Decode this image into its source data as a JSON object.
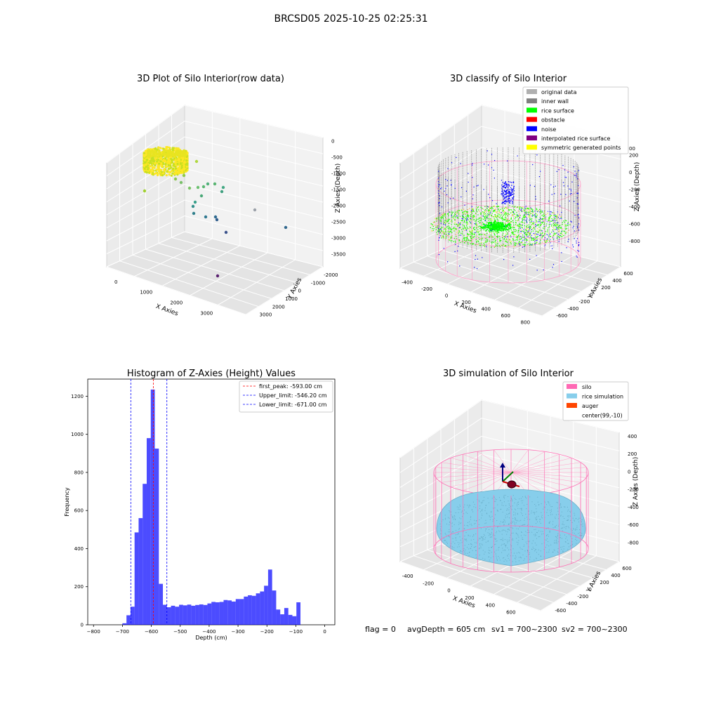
{
  "suptitle": "BRCSD05 2025-10-25 02:25:31",
  "footer": {
    "flag": "flag = 0",
    "avg_depth": "avgDepth = 605 cm",
    "sv1": "sv1 = 700~2300",
    "sv2": "sv2 = 700~2300"
  },
  "chart_data": [
    {
      "type": "scatter",
      "title": "3D Plot of Silo Interior(row data)",
      "xlabel": "X Axies",
      "ylabel": "Y Axies",
      "zlabel": "Z Axies (Depth)",
      "x_ticks": [
        "0",
        "1000",
        "2000",
        "3000"
      ],
      "y_ticks": [
        "-2000",
        "-1000",
        "0",
        "1000",
        "2000",
        "3000"
      ],
      "z_ticks": [
        "0",
        "-500",
        "-1000",
        "-1500",
        "-2000",
        "-2500",
        "-3000",
        "-3500"
      ],
      "colormap": [
        "#fde725",
        "#35b779",
        "#31688e",
        "#440154"
      ]
    },
    {
      "type": "scatter",
      "title": "3D classify of Silo Interior",
      "xlabel": "X Axies",
      "ylabel": "Y Axies",
      "zlabel": "Z Axies (Depth)",
      "x_ticks": [
        "-400",
        "-200",
        "0",
        "200",
        "400",
        "600",
        "800"
      ],
      "y_ticks": [
        "-600",
        "-400",
        "-200",
        "0",
        "200",
        "400",
        "600"
      ],
      "z_ticks": [
        "200",
        "0",
        "-200",
        "-400",
        "-600",
        "-800"
      ],
      "z_tick_partial": "00",
      "legend_position": "top-right",
      "legend": [
        {
          "label": "original data",
          "color": "#b0b0b0"
        },
        {
          "label": "inner wall",
          "color": "#808080"
        },
        {
          "label": "rice surface",
          "color": "#00ff00"
        },
        {
          "label": "obstacle",
          "color": "#ff0000"
        },
        {
          "label": "noise",
          "color": "#0000ff"
        },
        {
          "label": "interpolated rice surface",
          "color": "#800080"
        },
        {
          "label": "symmetric generated points",
          "color": "#ffff00"
        }
      ]
    },
    {
      "type": "bar",
      "title": "Histogram of Z-Axies (Height) Values",
      "xlabel": "Depth (cm)",
      "ylabel": "Frequency",
      "xlim": [
        -820,
        35
      ],
      "ylim": [
        0,
        1290
      ],
      "x_ticks": [
        -800,
        -700,
        -600,
        -500,
        -400,
        -300,
        -200,
        -100,
        0
      ],
      "y_ticks": [
        0,
        200,
        400,
        600,
        800,
        1000,
        1200
      ],
      "bin_width": 14,
      "bins_start": [
        -700,
        -686,
        -672,
        -658,
        -644,
        -630,
        -616,
        -602,
        -588,
        -574,
        -560,
        -546,
        -532,
        -518,
        -504,
        -490,
        -476,
        -462,
        -448,
        -434,
        -420,
        -406,
        -392,
        -378,
        -364,
        -350,
        -336,
        -322,
        -308,
        -294,
        -280,
        -266,
        -252,
        -238,
        -224,
        -210,
        -196,
        -182,
        -168,
        -154,
        -140,
        -126,
        -112,
        -98,
        -84,
        -70,
        -56,
        -42,
        -28,
        -14
      ],
      "values": [
        8,
        50,
        95,
        485,
        560,
        740,
        980,
        1235,
        925,
        215,
        105,
        92,
        100,
        95,
        105,
        102,
        106,
        100,
        104,
        107,
        104,
        112,
        120,
        118,
        120,
        130,
        128,
        122,
        135,
        135,
        148,
        155,
        152,
        165,
        175,
        205,
        290,
        180,
        80,
        55,
        88,
        52,
        45,
        118,
        0,
        0,
        0,
        0,
        0,
        0
      ],
      "bar_color": "#0000ff",
      "lines": [
        {
          "label": "first_peak: -593.00 cm",
          "x": -593,
          "color": "#ff0000"
        },
        {
          "label": "Upper_limit: -546.20 cm",
          "x": -546.2,
          "color": "#0000ff"
        },
        {
          "label": "Lower_limit: -671.00 cm",
          "x": -671,
          "color": "#0000ff"
        }
      ],
      "legend_position": "top-right"
    },
    {
      "type": "scatter",
      "title": "3D simulation of Silo Interior",
      "xlabel": "X Axies",
      "ylabel": "Y Axies",
      "zlabel": "Z Axies (Depth)",
      "x_ticks": [
        "-400",
        "-200",
        "0",
        "200",
        "400",
        "600"
      ],
      "y_ticks": [
        "-600",
        "-400",
        "-200",
        "0",
        "200",
        "400",
        "600"
      ],
      "z_ticks": [
        "400",
        "200",
        "0",
        "-200",
        "-400",
        "-600",
        "-800"
      ],
      "legend_position": "top-right",
      "legend": [
        {
          "label": "silo",
          "color": "#ff69b4"
        },
        {
          "label": "rice simulation",
          "color": "#87ceeb"
        },
        {
          "label": "auger",
          "color": "#ff4500"
        },
        {
          "label": "center(99,-10)",
          "color": "#ffffff"
        }
      ]
    }
  ]
}
